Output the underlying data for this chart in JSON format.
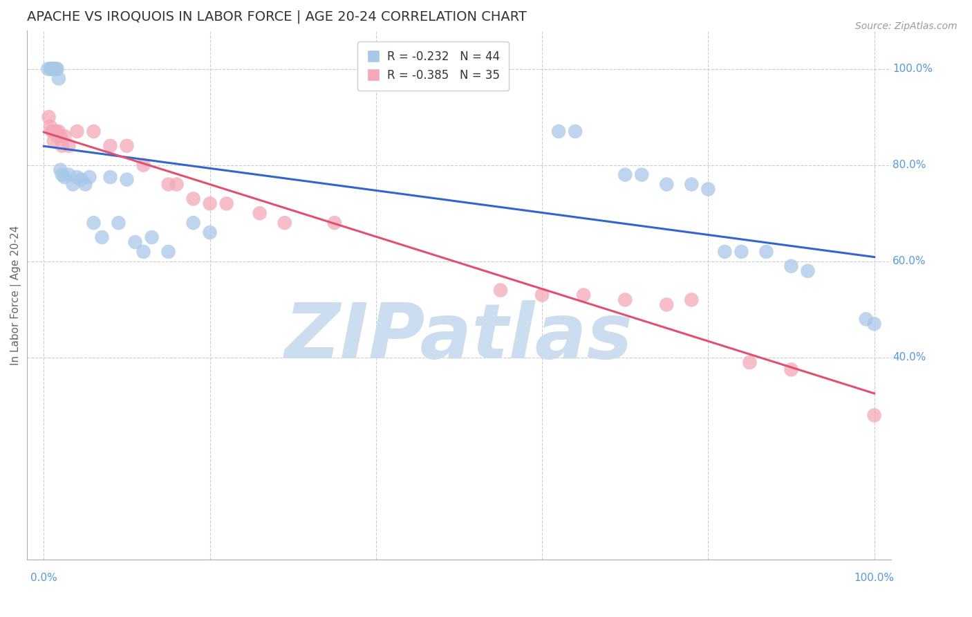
{
  "title": "APACHE VS IROQUOIS IN LABOR FORCE | AGE 20-24 CORRELATION CHART",
  "source": "Source: ZipAtlas.com",
  "ylabel": "In Labor Force | Age 20-24",
  "xlim": [
    -0.02,
    1.02
  ],
  "ylim": [
    -0.02,
    1.08
  ],
  "apache_R": -0.232,
  "apache_N": 44,
  "iroquois_R": -0.385,
  "iroquois_N": 35,
  "apache_color": "#a8c8e8",
  "iroquois_color": "#f4a8b8",
  "apache_line_color": "#3366cc",
  "iroquois_line_color": "#e05070",
  "background_color": "#ffffff",
  "grid_color": "#cccccc",
  "apache_x": [
    0.005,
    0.008,
    0.009,
    0.01,
    0.011,
    0.012,
    0.013,
    0.015,
    0.016,
    0.018,
    0.02,
    0.022,
    0.025,
    0.03,
    0.035,
    0.04,
    0.045,
    0.05,
    0.055,
    0.06,
    0.07,
    0.08,
    0.09,
    0.1,
    0.11,
    0.12,
    0.13,
    0.15,
    0.18,
    0.2,
    0.62,
    0.64,
    0.7,
    0.72,
    0.75,
    0.78,
    0.8,
    0.82,
    0.84,
    0.87,
    0.9,
    0.92,
    0.99,
    1.0
  ],
  "apache_y": [
    1.0,
    1.0,
    1.0,
    1.0,
    1.0,
    1.0,
    1.0,
    1.0,
    1.0,
    0.98,
    0.79,
    0.78,
    0.775,
    0.78,
    0.76,
    0.775,
    0.77,
    0.76,
    0.775,
    0.68,
    0.65,
    0.775,
    0.68,
    0.77,
    0.64,
    0.62,
    0.65,
    0.62,
    0.68,
    0.66,
    0.87,
    0.87,
    0.78,
    0.78,
    0.76,
    0.76,
    0.75,
    0.62,
    0.62,
    0.62,
    0.59,
    0.58,
    0.48,
    0.47
  ],
  "iroquois_x": [
    0.006,
    0.008,
    0.01,
    0.011,
    0.012,
    0.013,
    0.015,
    0.016,
    0.018,
    0.02,
    0.022,
    0.025,
    0.03,
    0.04,
    0.06,
    0.08,
    0.1,
    0.12,
    0.15,
    0.16,
    0.18,
    0.2,
    0.22,
    0.26,
    0.29,
    0.35,
    0.55,
    0.6,
    0.65,
    0.7,
    0.75,
    0.78,
    0.85,
    0.9,
    1.0
  ],
  "iroquois_y": [
    0.9,
    0.88,
    0.87,
    0.87,
    0.85,
    0.87,
    0.87,
    0.86,
    0.87,
    0.86,
    0.84,
    0.86,
    0.84,
    0.87,
    0.87,
    0.84,
    0.84,
    0.8,
    0.76,
    0.76,
    0.73,
    0.72,
    0.72,
    0.7,
    0.68,
    0.68,
    0.54,
    0.53,
    0.53,
    0.52,
    0.51,
    0.52,
    0.39,
    0.375,
    0.28
  ],
  "ytick_positions": [
    0.4,
    0.6,
    0.8,
    1.0
  ],
  "ytick_labels": [
    "40.0%",
    "60.0%",
    "80.0%",
    "100.0%"
  ],
  "xtick_positions": [
    0.0,
    1.0
  ],
  "xtick_labels": [
    "0.0%",
    "100.0%"
  ],
  "watermark": "ZIPatlas",
  "watermark_color": "#ccddf0",
  "title_fontsize": 14,
  "label_fontsize": 11,
  "tick_fontsize": 11,
  "legend_fontsize": 12,
  "source_fontsize": 10,
  "tick_color": "#5599dd"
}
